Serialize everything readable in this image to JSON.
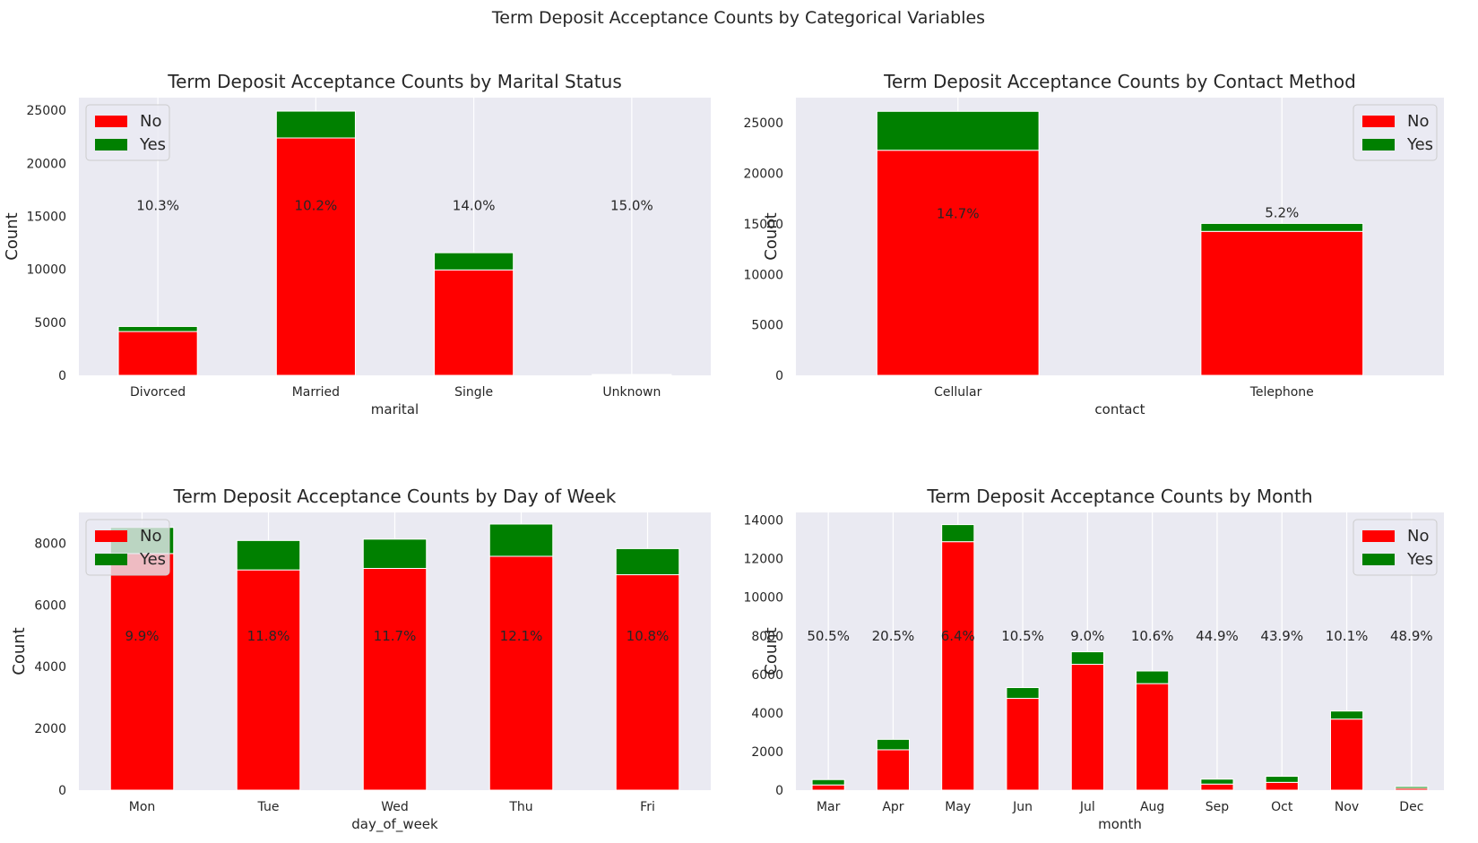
{
  "figure_title": "Term Deposit Acceptance Counts by Categorical Variables",
  "colors": {
    "no": "#ff0000",
    "yes": "#008000",
    "plot_bg": "#eaeaf2",
    "grid": "#ffffff"
  },
  "chart_data": [
    {
      "type": "bar",
      "stacked": true,
      "title": "Term Deposit Acceptance Counts by Marital Status",
      "xlabel": "marital",
      "ylabel": "Count",
      "categories": [
        "Divorced",
        "Married",
        "Single",
        "Unknown"
      ],
      "series": [
        {
          "name": "No",
          "color": "#ff0000",
          "values": [
            4136,
            22396,
            9948,
            68
          ]
        },
        {
          "name": "Yes",
          "color": "#008000",
          "values": [
            476,
            2532,
            1620,
            12
          ]
        }
      ],
      "annotations": [
        "10.3%",
        "10.2%",
        "14.0%",
        "15.0%"
      ],
      "annotation_y": 16000,
      "ylim": [
        0,
        26200
      ],
      "yticks": [
        0,
        5000,
        10000,
        15000,
        20000,
        25000
      ],
      "legend": "upper left",
      "grid": "vertical"
    },
    {
      "type": "bar",
      "stacked": true,
      "title": "Term Deposit Acceptance Counts by Contact Method",
      "xlabel": "contact",
      "ylabel": "Count",
      "categories": [
        "Cellular",
        "Telephone"
      ],
      "series": [
        {
          "name": "No",
          "color": "#ff0000",
          "values": [
            22291,
            14257
          ]
        },
        {
          "name": "Yes",
          "color": "#008000",
          "values": [
            3853,
            787
          ]
        }
      ],
      "annotations": [
        "14.7%",
        "5.2%"
      ],
      "annotation_y": [
        16000,
        16000
      ],
      "ylim": [
        0,
        27500
      ],
      "yticks": [
        0,
        5000,
        10000,
        15000,
        20000,
        25000
      ],
      "legend": "upper right",
      "grid": "vertical"
    },
    {
      "type": "bar",
      "stacked": true,
      "title": "Term Deposit Acceptance Counts by Day of Week",
      "xlabel": "day_of_week",
      "ylabel": "Count",
      "categories": [
        "Mon",
        "Tue",
        "Wed",
        "Thu",
        "Fri"
      ],
      "series": [
        {
          "name": "No",
          "color": "#ff0000",
          "values": [
            7667,
            7137,
            7185,
            7578,
            6981
          ]
        },
        {
          "name": "Yes",
          "color": "#008000",
          "values": [
            847,
            953,
            949,
            1045,
            846
          ]
        }
      ],
      "annotations": [
        "9.9%",
        "11.8%",
        "11.7%",
        "12.1%",
        "10.8%"
      ],
      "annotation_y": 5000,
      "ylim": [
        0,
        9000
      ],
      "yticks": [
        0,
        2000,
        4000,
        6000,
        8000
      ],
      "legend": "upper left",
      "grid": "vertical"
    },
    {
      "type": "bar",
      "stacked": true,
      "title": "Term Deposit Acceptance Counts by Month",
      "xlabel": "month",
      "ylabel": "Count",
      "categories": [
        "Mar",
        "Apr",
        "May",
        "Jun",
        "Jul",
        "Aug",
        "Sep",
        "Oct",
        "Nov",
        "Dec"
      ],
      "series": [
        {
          "name": "No",
          "color": "#ff0000",
          "values": [
            270,
            2093,
            12883,
            4759,
            6525,
            5523,
            314,
            403,
            3685,
            93
          ]
        },
        {
          "name": "Yes",
          "color": "#008000",
          "values": [
            276,
            539,
            886,
            559,
            649,
            655,
            256,
            315,
            416,
            89
          ]
        }
      ],
      "annotations": [
        "50.5%",
        "20.5%",
        "6.4%",
        "10.5%",
        "9.0%",
        "10.6%",
        "44.9%",
        "43.9%",
        "10.1%",
        "48.9%"
      ],
      "annotation_y": 8000,
      "ylim": [
        0,
        14400
      ],
      "yticks": [
        0,
        2000,
        4000,
        6000,
        8000,
        10000,
        12000,
        14000
      ],
      "legend": "upper right",
      "grid": "vertical"
    }
  ]
}
